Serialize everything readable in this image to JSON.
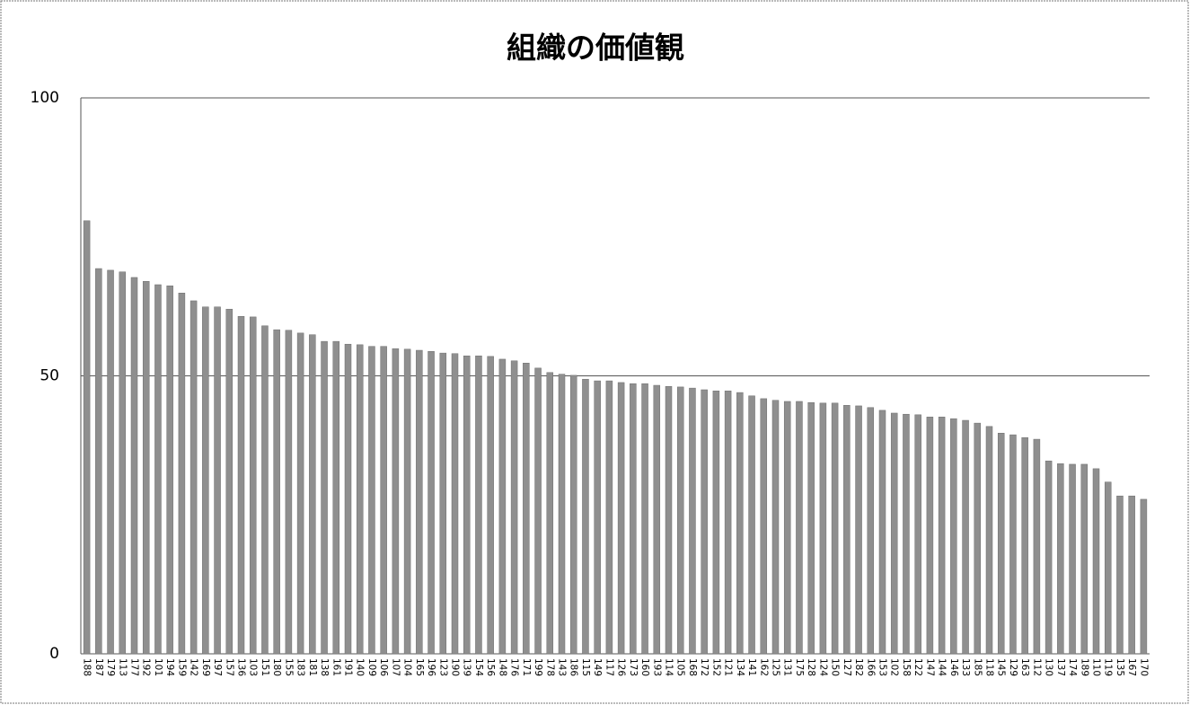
{
  "chart_data": {
    "type": "bar",
    "title": "組織の価値観",
    "categories": [
      "188",
      "187",
      "179",
      "113",
      "177",
      "192",
      "101",
      "194",
      "159",
      "142",
      "169",
      "197",
      "157",
      "136",
      "103",
      "151",
      "180",
      "155",
      "183",
      "181",
      "138",
      "161",
      "191",
      "140",
      "109",
      "106",
      "107",
      "104",
      "165",
      "196",
      "123",
      "190",
      "139",
      "154",
      "156",
      "148",
      "176",
      "171",
      "199",
      "178",
      "143",
      "186",
      "115",
      "149",
      "117",
      "126",
      "173",
      "160",
      "193",
      "114",
      "105",
      "168",
      "172",
      "152",
      "121",
      "134",
      "141",
      "162",
      "125",
      "131",
      "175",
      "128",
      "124",
      "150",
      "127",
      "182",
      "166",
      "153",
      "102",
      "158",
      "122",
      "147",
      "144",
      "146",
      "133",
      "185",
      "118",
      "145",
      "129",
      "163",
      "112",
      "130",
      "137",
      "174",
      "189",
      "110",
      "119",
      "135",
      "167",
      "170"
    ],
    "values": [
      77.9,
      69.3,
      69.0,
      68.7,
      67.7,
      67.0,
      66.4,
      66.2,
      64.9,
      63.5,
      62.4,
      62.4,
      62.0,
      60.7,
      60.6,
      59.0,
      58.3,
      58.2,
      57.7,
      57.4,
      56.2,
      56.2,
      55.7,
      55.6,
      55.3,
      55.3,
      54.9,
      54.8,
      54.6,
      54.4,
      54.1,
      54.0,
      53.6,
      53.6,
      53.5,
      53.0,
      52.7,
      52.3,
      51.4,
      50.6,
      50.3,
      50.1,
      49.4,
      49.1,
      49.1,
      48.8,
      48.6,
      48.6,
      48.3,
      48.1,
      48.0,
      47.8,
      47.5,
      47.3,
      47.3,
      47.0,
      46.4,
      45.9,
      45.6,
      45.4,
      45.4,
      45.2,
      45.1,
      45.1,
      44.7,
      44.6,
      44.3,
      43.8,
      43.3,
      43.1,
      43.0,
      42.6,
      42.6,
      42.3,
      42.0,
      41.5,
      40.9,
      39.7,
      39.4,
      38.9,
      38.6,
      34.7,
      34.2,
      34.1,
      34.1,
      33.3,
      30.9,
      28.4,
      28.4,
      27.8
    ],
    "color": "#8f8f8f",
    "ylim": [
      0,
      100
    ],
    "yticks": [
      0,
      50,
      100
    ],
    "grid": true
  }
}
